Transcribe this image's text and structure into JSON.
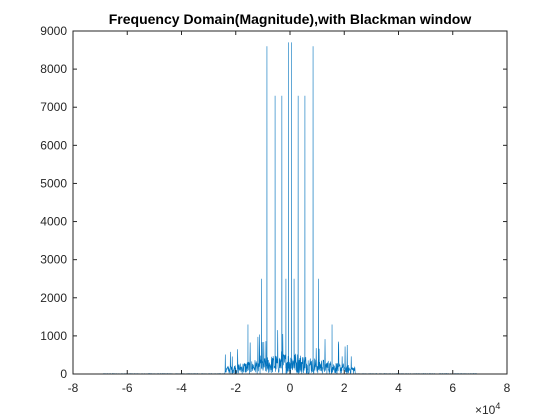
{
  "chart_data": {
    "type": "line",
    "title": "Frequency Domain(Magnitude),with Blackman window",
    "xlabel": "",
    "ylabel": "",
    "x_exponent_label": "×10",
    "x_exponent": "4",
    "xlim": [
      -8,
      8
    ],
    "ylim": [
      0,
      9000
    ],
    "x_ticks": [
      -8,
      -6,
      -4,
      -2,
      0,
      2,
      4,
      6,
      8
    ],
    "y_ticks": [
      0,
      1000,
      2000,
      3000,
      4000,
      5000,
      6000,
      7000,
      8000,
      9000
    ],
    "grid": false,
    "legend": "none",
    "line_color": "#0072bd",
    "x_units_note": "x values in units of 10^4 (Hz)",
    "data_range_x": [
      -6.9,
      6.9
    ],
    "peaks": [
      {
        "x": -0.85,
        "y": 8600
      },
      {
        "x": -0.55,
        "y": 7300
      },
      {
        "x": -0.3,
        "y": 7300
      },
      {
        "x": -0.05,
        "y": 8700
      },
      {
        "x": 0.05,
        "y": 8700
      },
      {
        "x": 0.3,
        "y": 7300
      },
      {
        "x": 0.55,
        "y": 7300
      },
      {
        "x": 0.85,
        "y": 8600
      },
      {
        "x": -1.05,
        "y": 2500
      },
      {
        "x": 1.05,
        "y": 2500
      },
      {
        "x": -1.55,
        "y": 1300
      },
      {
        "x": 1.55,
        "y": 1300
      },
      {
        "x": -0.15,
        "y": 2500
      },
      {
        "x": 0.15,
        "y": 2500
      }
    ],
    "noise_band": {
      "x_range": [
        -2.4,
        2.4
      ],
      "typical_y": 400,
      "max_y": 1100
    }
  }
}
